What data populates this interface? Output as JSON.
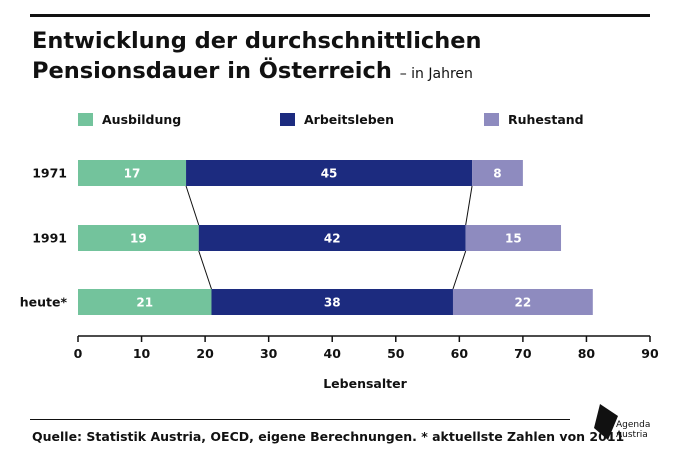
{
  "header": {
    "title": "Entwicklung der durchschnittlichen Pensionsdauer in Österreich",
    "subtitle": "– in Jahren"
  },
  "legend": [
    {
      "label": "Ausbildung",
      "color": "#73c39c"
    },
    {
      "label": "Arbeitsleben",
      "color": "#1c2b7f"
    },
    {
      "label": "Ruhestand",
      "color": "#8e8bbf"
    }
  ],
  "chart_data": {
    "type": "bar",
    "orientation": "horizontal",
    "stacked": true,
    "categories": [
      "1971",
      "1991",
      "heute*"
    ],
    "series": [
      {
        "name": "Ausbildung",
        "values": [
          17,
          19,
          21
        ]
      },
      {
        "name": "Arbeitsleben",
        "values": [
          45,
          42,
          38
        ]
      },
      {
        "name": "Ruhestand",
        "values": [
          8,
          15,
          22
        ]
      }
    ],
    "xlabel": "Lebensalter",
    "xlim": [
      0,
      90
    ],
    "xticks": [
      0,
      10,
      20,
      30,
      40,
      50,
      60,
      70,
      80,
      90
    ],
    "legend_position": "top",
    "grid": false
  },
  "footer": {
    "source": "Quelle: Statistik Austria, OECD, eigene Berechnungen.  * aktuellste Zahlen von 2011"
  },
  "logo": {
    "line1": "Agenda",
    "line2": "Austria",
    "icon": "agenda-austria-logo-icon"
  }
}
